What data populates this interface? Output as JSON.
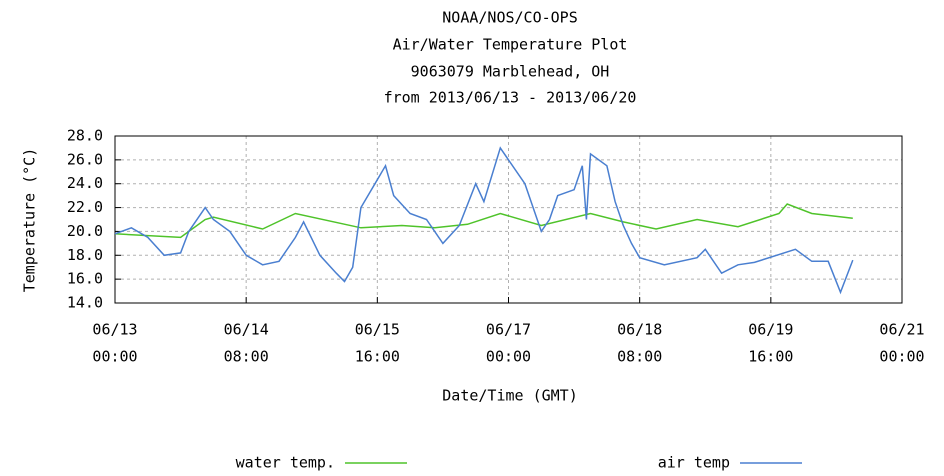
{
  "chart_data": {
    "type": "line",
    "title": [
      "NOAA/NOS/CO-OPS",
      "Air/Water Temperature Plot",
      "9063079 Marblehead, OH",
      "from 2013/06/13 - 2013/06/20"
    ],
    "ylabel": "Temperature (°C)",
    "xlabel": "Date/Time (GMT)",
    "xlim": [
      "2013-06-13T00:00",
      "2013-06-21T00:00"
    ],
    "xticks": [
      {
        "value": "2013-06-13T00:00",
        "label": [
          "06/13",
          "00:00"
        ]
      },
      {
        "value": "2013-06-14T08:00",
        "label": [
          "06/14",
          "08:00"
        ]
      },
      {
        "value": "2013-06-15T16:00",
        "label": [
          "06/15",
          "16:00"
        ]
      },
      {
        "value": "2013-06-17T00:00",
        "label": [
          "06/17",
          "00:00"
        ]
      },
      {
        "value": "2013-06-18T08:00",
        "label": [
          "06/18",
          "08:00"
        ]
      },
      {
        "value": "2013-06-19T16:00",
        "label": [
          "06/19",
          "16:00"
        ]
      },
      {
        "value": "2013-06-21T00:00",
        "label": [
          "06/21",
          "00:00"
        ]
      }
    ],
    "ylim": [
      14,
      28
    ],
    "yticks": [
      {
        "value": 14,
        "label": "14.0"
      },
      {
        "value": 16,
        "label": "16.0"
      },
      {
        "value": 18,
        "label": "18.0"
      },
      {
        "value": 20,
        "label": "20.0"
      },
      {
        "value": 22,
        "label": "22.0"
      },
      {
        "value": 24,
        "label": "24.0"
      },
      {
        "value": 26,
        "label": "26.0"
      },
      {
        "value": 28,
        "label": "28.0"
      }
    ],
    "grid": true,
    "series": [
      {
        "name": "water temp.",
        "color": "#4fc32a",
        "x": [
          "2013-06-13T00:00",
          "2013-06-13T16:00",
          "2013-06-13T22:00",
          "2013-06-14T00:00",
          "2013-06-14T12:00",
          "2013-06-14T20:00",
          "2013-06-15T12:00",
          "2013-06-15T22:00",
          "2013-06-16T06:00",
          "2013-06-16T14:00",
          "2013-06-16T22:00",
          "2013-06-17T08:00",
          "2013-06-17T20:00",
          "2013-06-18T04:00",
          "2013-06-18T12:00",
          "2013-06-18T22:00",
          "2013-06-19T08:00",
          "2013-06-19T18:00",
          "2013-06-19T20:00",
          "2013-06-20T02:00",
          "2013-06-20T12:00"
        ],
        "values": [
          19.8,
          19.5,
          21.0,
          21.2,
          20.2,
          21.5,
          20.3,
          20.5,
          20.3,
          20.6,
          21.5,
          20.5,
          21.5,
          20.8,
          20.2,
          21.0,
          20.4,
          21.5,
          22.3,
          21.5,
          21.1
        ]
      },
      {
        "name": "air temp",
        "color": "#4a7fd0",
        "x": [
          "2013-06-13T00:00",
          "2013-06-13T04:00",
          "2013-06-13T08:00",
          "2013-06-13T12:00",
          "2013-06-13T16:00",
          "2013-06-13T18:00",
          "2013-06-13T22:00",
          "2013-06-14T00:00",
          "2013-06-14T04:00",
          "2013-06-14T08:00",
          "2013-06-14T12:00",
          "2013-06-14T16:00",
          "2013-06-14T20:00",
          "2013-06-14T22:00",
          "2013-06-15T02:00",
          "2013-06-15T06:00",
          "2013-06-15T08:00",
          "2013-06-15T10:00",
          "2013-06-15T12:00",
          "2013-06-15T18:00",
          "2013-06-15T20:00",
          "2013-06-16T00:00",
          "2013-06-16T04:00",
          "2013-06-16T08:00",
          "2013-06-16T12:00",
          "2013-06-16T16:00",
          "2013-06-16T18:00",
          "2013-06-16T22:00",
          "2013-06-17T00:00",
          "2013-06-17T04:00",
          "2013-06-17T08:00",
          "2013-06-17T10:00",
          "2013-06-17T12:00",
          "2013-06-17T16:00",
          "2013-06-17T18:00",
          "2013-06-17T19:00",
          "2013-06-17T20:00",
          "2013-06-18T00:00",
          "2013-06-18T02:00",
          "2013-06-18T04:00",
          "2013-06-18T06:00",
          "2013-06-18T08:00",
          "2013-06-18T14:00",
          "2013-06-18T22:00",
          "2013-06-19T00:00",
          "2013-06-19T04:00",
          "2013-06-19T08:00",
          "2013-06-19T12:00",
          "2013-06-19T22:00",
          "2013-06-20T02:00",
          "2013-06-20T06:00",
          "2013-06-20T09:00",
          "2013-06-20T12:00"
        ],
        "values": [
          19.8,
          20.3,
          19.5,
          18.0,
          18.2,
          20.0,
          22.0,
          21.0,
          20.0,
          18.0,
          17.2,
          17.5,
          19.5,
          20.8,
          18.0,
          16.5,
          15.8,
          17.0,
          22.0,
          25.5,
          23.0,
          21.5,
          21.0,
          19.0,
          20.5,
          24.0,
          22.5,
          27.0,
          26.0,
          24.0,
          20.0,
          21.0,
          23.0,
          23.5,
          25.5,
          21.0,
          26.5,
          25.5,
          22.5,
          20.5,
          19.0,
          17.8,
          17.2,
          17.8,
          18.5,
          16.5,
          17.2,
          17.4,
          18.5,
          17.5,
          17.5,
          14.9,
          17.6
        ]
      }
    ]
  }
}
